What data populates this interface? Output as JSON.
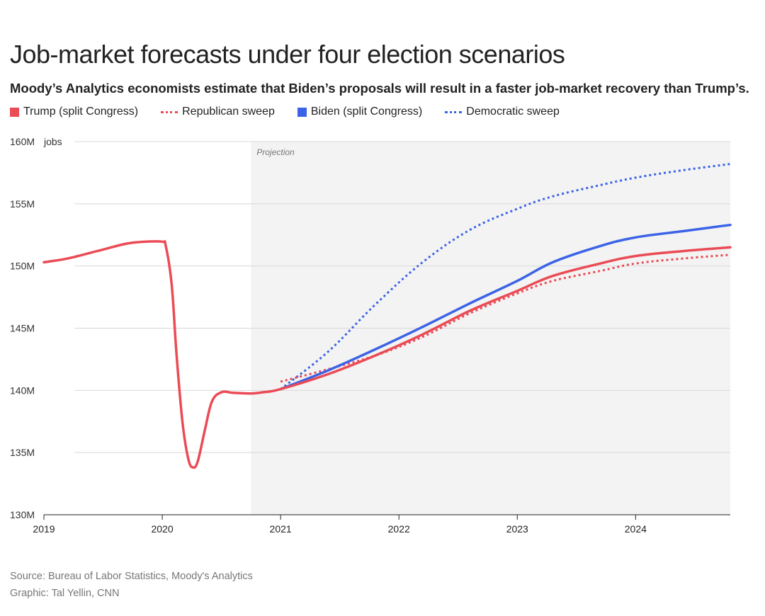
{
  "header": {
    "title": "Job-market forecasts under four election scenarios",
    "subtitle": "Moody’s Analytics economists estimate that Biden’s proposals will result in a faster job-market recovery than Trump’s."
  },
  "legend": [
    {
      "label": "Trump (split Congress)",
      "style": "solid",
      "color": "#ea4b55"
    },
    {
      "label": "Republican sweep",
      "style": "dotted",
      "color": "#ea4b55"
    },
    {
      "label": "Biden (split Congress)",
      "style": "solid",
      "color": "#3b63e6"
    },
    {
      "label": "Democratic sweep",
      "style": "dotted",
      "color": "#3b63e6"
    }
  ],
  "footer": {
    "source": "Source: Bureau of Labor Statistics, Moody's Analytics",
    "credit": "Graphic: Tal Yellin, CNN"
  },
  "chart_data": {
    "type": "line",
    "title": "Job-market forecasts under four election scenarios",
    "ylabel": "jobs",
    "ylim": [
      130,
      160
    ],
    "xlim": [
      2019.0,
      2024.8
    ],
    "y_ticks": [
      {
        "value": 130,
        "label": "130M"
      },
      {
        "value": 135,
        "label": "135M"
      },
      {
        "value": 140,
        "label": "140M"
      },
      {
        "value": 145,
        "label": "145M"
      },
      {
        "value": 150,
        "label": "150M"
      },
      {
        "value": 155,
        "label": "155M"
      },
      {
        "value": 160,
        "label": "160M"
      }
    ],
    "x_ticks": [
      {
        "value": 2019,
        "label": "2019"
      },
      {
        "value": 2020,
        "label": "2020"
      },
      {
        "value": 2021,
        "label": "2021"
      },
      {
        "value": 2022,
        "label": "2022"
      },
      {
        "value": 2023,
        "label": "2023"
      },
      {
        "value": 2024,
        "label": "2024"
      }
    ],
    "projection": {
      "start": 2020.75,
      "label": "Projection"
    },
    "grid": true,
    "series": [
      {
        "name": "Trump (split Congress)",
        "color": "#ea4b55",
        "dash": "solid",
        "points": [
          [
            2019.0,
            150.3
          ],
          [
            2019.2,
            150.6
          ],
          [
            2019.45,
            151.2
          ],
          [
            2019.7,
            151.8
          ],
          [
            2019.85,
            151.95
          ],
          [
            2020.0,
            151.95
          ],
          [
            2020.03,
            151.6
          ],
          [
            2020.08,
            148.5
          ],
          [
            2020.12,
            143.0
          ],
          [
            2020.17,
            137.5
          ],
          [
            2020.22,
            134.5
          ],
          [
            2020.26,
            133.8
          ],
          [
            2020.3,
            134.3
          ],
          [
            2020.36,
            136.8
          ],
          [
            2020.42,
            139.1
          ],
          [
            2020.5,
            139.85
          ],
          [
            2020.6,
            139.8
          ],
          [
            2020.75,
            139.75
          ],
          [
            2020.85,
            139.85
          ],
          [
            2021.0,
            140.1
          ],
          [
            2021.4,
            141.3
          ],
          [
            2021.8,
            142.8
          ],
          [
            2022.2,
            144.5
          ],
          [
            2022.6,
            146.4
          ],
          [
            2023.0,
            148.0
          ],
          [
            2023.3,
            149.2
          ],
          [
            2023.7,
            150.2
          ],
          [
            2024.0,
            150.8
          ],
          [
            2024.4,
            151.2
          ],
          [
            2024.8,
            151.5
          ]
        ]
      },
      {
        "name": "Republican sweep",
        "color": "#ea4b55",
        "dash": "dotted",
        "points": [
          [
            2021.0,
            140.7
          ],
          [
            2021.4,
            141.7
          ],
          [
            2021.8,
            142.8
          ],
          [
            2022.2,
            144.3
          ],
          [
            2022.6,
            146.2
          ],
          [
            2023.0,
            147.8
          ],
          [
            2023.3,
            148.8
          ],
          [
            2023.7,
            149.6
          ],
          [
            2024.0,
            150.2
          ],
          [
            2024.4,
            150.6
          ],
          [
            2024.8,
            150.9
          ]
        ]
      },
      {
        "name": "Biden (split Congress)",
        "color": "#3b63e6",
        "dash": "solid",
        "points": [
          [
            2021.0,
            140.1
          ],
          [
            2021.4,
            141.6
          ],
          [
            2021.8,
            143.3
          ],
          [
            2022.2,
            145.1
          ],
          [
            2022.6,
            147.0
          ],
          [
            2023.0,
            148.8
          ],
          [
            2023.3,
            150.3
          ],
          [
            2023.7,
            151.6
          ],
          [
            2024.0,
            152.3
          ],
          [
            2024.4,
            152.8
          ],
          [
            2024.8,
            153.3
          ]
        ]
      },
      {
        "name": "Democratic sweep",
        "color": "#3b63e6",
        "dash": "dotted",
        "points": [
          [
            2021.0,
            140.1
          ],
          [
            2021.4,
            143.1
          ],
          [
            2021.8,
            146.9
          ],
          [
            2022.2,
            150.3
          ],
          [
            2022.6,
            152.9
          ],
          [
            2023.0,
            154.6
          ],
          [
            2023.3,
            155.6
          ],
          [
            2023.7,
            156.5
          ],
          [
            2024.0,
            157.1
          ],
          [
            2024.4,
            157.7
          ],
          [
            2024.8,
            158.2
          ]
        ]
      }
    ]
  }
}
